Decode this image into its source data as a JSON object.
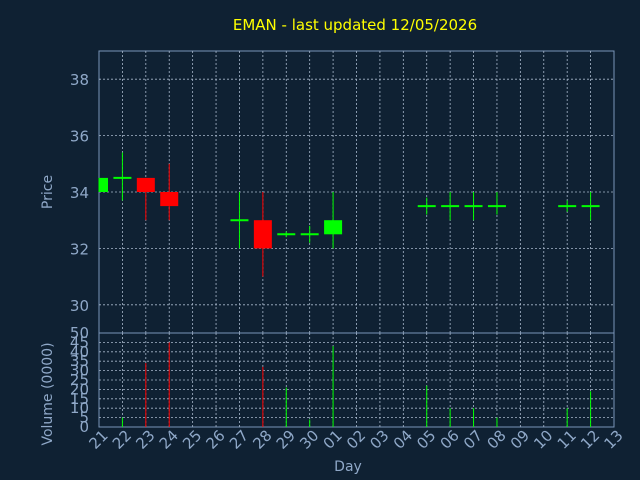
{
  "chart_data": {
    "type": "candlestick",
    "title": "EMAN - last updated 12/05/2026",
    "xlabel": "Day",
    "price_panel": {
      "ylabel": "Price",
      "ylim": [
        29,
        39
      ],
      "yticks": [
        30,
        32,
        34,
        36,
        38
      ],
      "grid": true
    },
    "volume_panel": {
      "ylabel": "Volume (0000)",
      "ylim": [
        0,
        50
      ],
      "yticks": [
        0,
        5,
        10,
        15,
        20,
        25,
        30,
        35,
        40,
        45,
        50
      ],
      "grid": true
    },
    "x_ticks": [
      "21",
      "22",
      "23",
      "24",
      "25",
      "26",
      "27",
      "28",
      "29",
      "30",
      "01",
      "02",
      "03",
      "04",
      "05",
      "06",
      "07",
      "08",
      "09",
      "10",
      "11",
      "12",
      "13"
    ],
    "candles": [
      {
        "day": "21",
        "open": 34.0,
        "high": 34.5,
        "low": 34.0,
        "close": 34.5,
        "volume": 0
      },
      {
        "day": "22",
        "open": 34.5,
        "high": 35.4,
        "low": 33.7,
        "close": 34.5,
        "volume": 5
      },
      {
        "day": "23",
        "open": 34.5,
        "high": 34.5,
        "low": 33.0,
        "close": 34.0,
        "volume": 34
      },
      {
        "day": "24",
        "open": 34.0,
        "high": 35.0,
        "low": 33.0,
        "close": 33.5,
        "volume": 45
      },
      {
        "day": "27",
        "open": 33.0,
        "high": 34.0,
        "low": 32.0,
        "close": 33.0,
        "volume": 0
      },
      {
        "day": "28",
        "open": 33.0,
        "high": 34.0,
        "low": 31.0,
        "close": 32.0,
        "volume": 32
      },
      {
        "day": "29",
        "open": 32.5,
        "high": 32.6,
        "low": 32.4,
        "close": 32.5,
        "volume": 21
      },
      {
        "day": "30",
        "open": 32.5,
        "high": 32.8,
        "low": 32.2,
        "close": 32.5,
        "volume": 4
      },
      {
        "day": "01",
        "open": 32.5,
        "high": 34.0,
        "low": 32.0,
        "close": 33.0,
        "volume": 43
      },
      {
        "day": "05",
        "open": 33.5,
        "high": 33.8,
        "low": 33.2,
        "close": 33.5,
        "volume": 22
      },
      {
        "day": "06",
        "open": 33.5,
        "high": 34.0,
        "low": 33.0,
        "close": 33.5,
        "volume": 10
      },
      {
        "day": "07",
        "open": 33.5,
        "high": 34.0,
        "low": 33.0,
        "close": 33.5,
        "volume": 10
      },
      {
        "day": "08",
        "open": 33.5,
        "high": 34.0,
        "low": 33.2,
        "close": 33.5,
        "volume": 5
      },
      {
        "day": "11",
        "open": 33.5,
        "high": 33.7,
        "low": 33.3,
        "close": 33.5,
        "volume": 10
      },
      {
        "day": "12",
        "open": 33.5,
        "high": 34.0,
        "low": 33.0,
        "close": 33.5,
        "volume": 19
      }
    ],
    "colors": {
      "background": "#0f2133",
      "plot_background": "#0f2133",
      "axis": "#7a95b8",
      "grid": "#a8b8cc",
      "text": "#8fa8c8",
      "title": "#ffff00",
      "up": "#00ff00",
      "down": "#ff0000",
      "up_volume": "#00ff00",
      "down_volume": "#ff0000"
    }
  }
}
